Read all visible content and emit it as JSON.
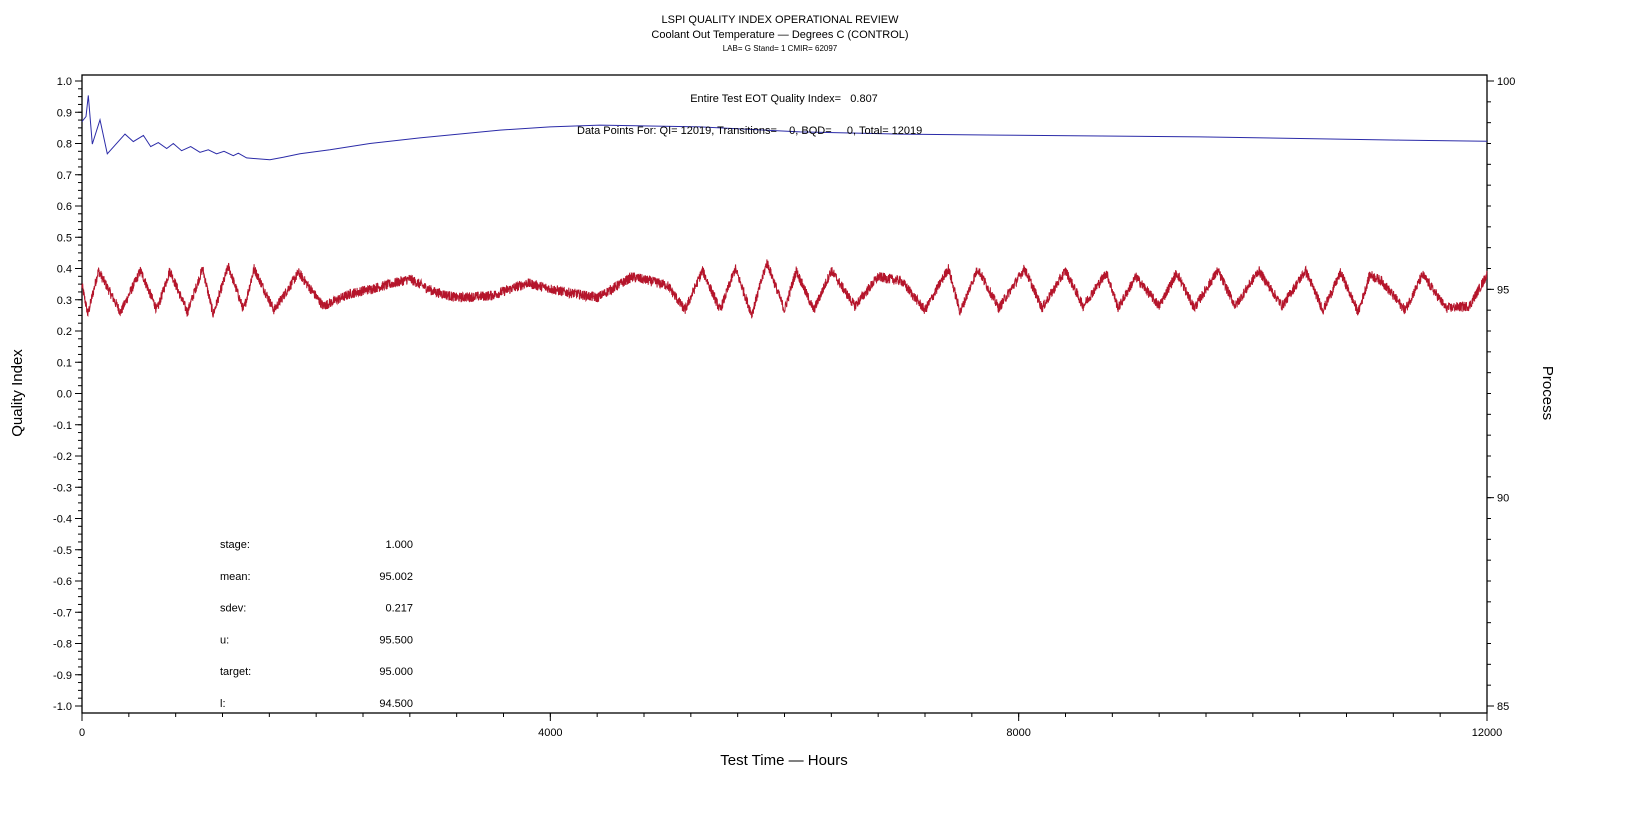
{
  "chart_data": {
    "type": "line",
    "title": "LSPI QUALITY INDEX OPERATIONAL REVIEW",
    "subtitle": "Coolant Out Temperature — Degrees C (CONTROL)",
    "subtitle2": "LAB= G Stand= 1 CMIR= 62097",
    "xlabel": "Test Time — Hours",
    "ylabel": "Quality Index",
    "y2label": "Process",
    "xlim": [
      0,
      12000
    ],
    "ylim": [
      -1.0,
      1.0
    ],
    "y2lim": [
      85,
      100
    ],
    "xticks": [
      "0",
      "4000",
      "8000",
      "12000"
    ],
    "xtick_values": [
      0,
      4000,
      8000,
      12000
    ],
    "yticks": [
      "1.0",
      "0.9",
      "0.8",
      "0.7",
      "0.6",
      "0.5",
      "0.4",
      "0.3",
      "0.2",
      "0.1",
      "0.0",
      "-0.1",
      "-0.2",
      "-0.3",
      "-0.4",
      "-0.5",
      "-0.6",
      "-0.7",
      "-0.8",
      "-0.9",
      "-1.0"
    ],
    "y2ticks": [
      "100",
      "95",
      "90",
      "85"
    ],
    "grid": false,
    "annotations": {
      "eot": "Entire Test EOT Quality Index=   0.807",
      "points": "Data Points For: QI= 12019, Transitions=    0, BQD=     0, Total= 12019"
    },
    "stats": [
      {
        "label": "stage:",
        "value": "1.000"
      },
      {
        "label": "mean:",
        "value": "95.002"
      },
      {
        "label": "sdev:",
        "value": "0.217"
      },
      {
        "label": "u:",
        "value": "95.500"
      },
      {
        "label": "target:",
        "value": "95.000"
      },
      {
        "label": "l:",
        "value": "94.500"
      }
    ],
    "series": [
      {
        "name": "Quality Index",
        "axis": "left",
        "color": "#2b2ba8",
        "points": [
          [
            0,
            0.87
          ],
          [
            34,
            0.886
          ],
          [
            54,
            0.954
          ],
          [
            88,
            0.798
          ],
          [
            154,
            0.876
          ],
          [
            216,
            0.767
          ],
          [
            367,
            0.83
          ],
          [
            438,
            0.806
          ],
          [
            524,
            0.826
          ],
          [
            587,
            0.79
          ],
          [
            652,
            0.803
          ],
          [
            723,
            0.784
          ],
          [
            780,
            0.8
          ],
          [
            851,
            0.777
          ],
          [
            928,
            0.79
          ],
          [
            1008,
            0.772
          ],
          [
            1079,
            0.78
          ],
          [
            1150,
            0.767
          ],
          [
            1213,
            0.775
          ],
          [
            1292,
            0.761
          ],
          [
            1335,
            0.769
          ],
          [
            1406,
            0.754
          ],
          [
            1605,
            0.748
          ],
          [
            1719,
            0.756
          ],
          [
            1862,
            0.767
          ],
          [
            2118,
            0.78
          ],
          [
            2459,
            0.8
          ],
          [
            2886,
            0.818
          ],
          [
            3570,
            0.843
          ],
          [
            3997,
            0.853
          ],
          [
            4424,
            0.859
          ],
          [
            5278,
            0.853
          ],
          [
            6132,
            0.837
          ],
          [
            6986,
            0.83
          ],
          [
            7840,
            0.827
          ],
          [
            9548,
            0.821
          ],
          [
            11256,
            0.811
          ],
          [
            12000,
            0.807
          ]
        ]
      },
      {
        "name": "Coolant Out Temperature",
        "axis": "right",
        "color": "#b5152b",
        "noise": 0.12,
        "points": [
          [
            0,
            95.1
          ],
          [
            50,
            94.4
          ],
          [
            140,
            95.45
          ],
          [
            330,
            94.45
          ],
          [
            500,
            95.45
          ],
          [
            640,
            94.5
          ],
          [
            750,
            95.45
          ],
          [
            900,
            94.45
          ],
          [
            1030,
            95.5
          ],
          [
            1120,
            94.4
          ],
          [
            1250,
            95.55
          ],
          [
            1380,
            94.5
          ],
          [
            1470,
            95.5
          ],
          [
            1640,
            94.5
          ],
          [
            1850,
            95.4
          ],
          [
            2060,
            94.6
          ],
          [
            2300,
            94.9
          ],
          [
            2600,
            95.1
          ],
          [
            2800,
            95.25
          ],
          [
            3000,
            94.95
          ],
          [
            3200,
            94.8
          ],
          [
            3500,
            94.85
          ],
          [
            3800,
            95.15
          ],
          [
            4100,
            94.95
          ],
          [
            4400,
            94.8
          ],
          [
            4700,
            95.3
          ],
          [
            5000,
            95.1
          ],
          [
            5150,
            94.5
          ],
          [
            5300,
            95.45
          ],
          [
            5450,
            94.5
          ],
          [
            5580,
            95.5
          ],
          [
            5720,
            94.4
          ],
          [
            5850,
            95.65
          ],
          [
            6000,
            94.5
          ],
          [
            6100,
            95.45
          ],
          [
            6250,
            94.5
          ],
          [
            6400,
            95.45
          ],
          [
            6600,
            94.6
          ],
          [
            6800,
            95.3
          ],
          [
            7000,
            95.2
          ],
          [
            7200,
            94.5
          ],
          [
            7400,
            95.5
          ],
          [
            7500,
            94.45
          ],
          [
            7650,
            95.5
          ],
          [
            7830,
            94.55
          ],
          [
            8050,
            95.5
          ],
          [
            8200,
            94.55
          ],
          [
            8400,
            95.45
          ],
          [
            8550,
            94.6
          ],
          [
            8750,
            95.4
          ],
          [
            8850,
            94.55
          ],
          [
            9000,
            95.3
          ],
          [
            9200,
            94.6
          ],
          [
            9350,
            95.4
          ],
          [
            9500,
            94.55
          ],
          [
            9700,
            95.45
          ],
          [
            9850,
            94.6
          ],
          [
            10050,
            95.45
          ],
          [
            10250,
            94.6
          ],
          [
            10450,
            95.45
          ],
          [
            10600,
            94.5
          ],
          [
            10750,
            95.4
          ],
          [
            10900,
            94.45
          ],
          [
            11000,
            95.35
          ],
          [
            11100,
            95.2
          ],
          [
            11300,
            94.5
          ],
          [
            11450,
            95.35
          ],
          [
            11650,
            94.55
          ],
          [
            11850,
            94.6
          ],
          [
            12000,
            95.35
          ]
        ]
      }
    ]
  }
}
